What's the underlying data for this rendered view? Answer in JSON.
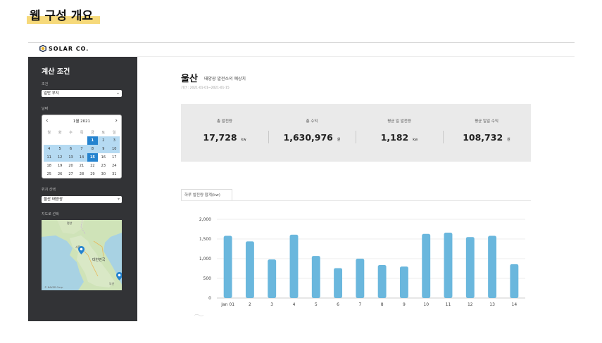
{
  "doc": {
    "title": "웹 구성 개요"
  },
  "brand": {
    "logo_text": "SOLAR CO."
  },
  "sidebar": {
    "title": "계산 조건",
    "condition_label": "조건",
    "condition_value": "일반 부지",
    "date_label": "날짜",
    "calendar": {
      "month_label": "1월 2021",
      "weekdays": [
        "월",
        "화",
        "수",
        "목",
        "금",
        "토",
        "일"
      ],
      "days": [
        "",
        "",
        "",
        "",
        "1",
        "2",
        "3",
        "4",
        "5",
        "6",
        "7",
        "8",
        "9",
        "10",
        "11",
        "12",
        "13",
        "14",
        "15",
        "16",
        "17",
        "18",
        "19",
        "20",
        "21",
        "22",
        "23",
        "24",
        "25",
        "26",
        "27",
        "28",
        "29",
        "30",
        "31"
      ],
      "range_start": "1",
      "range_end": "15"
    },
    "location_label": "위치 선택",
    "location_value": "울산 태양광",
    "map_label": "지도로 선택",
    "map_places": [
      "평양",
      "서울",
      "대한민국",
      "부산"
    ],
    "map_credit": "© NAVER Corp."
  },
  "main": {
    "title": "울산",
    "subtitle": "태양광 발전소의 예상치",
    "period": "기간 : 2021-01-01~2021-01-15"
  },
  "stats": [
    {
      "label": "총 발전량",
      "value": "17,728",
      "unit": "kw"
    },
    {
      "label": "총 수익",
      "value": "1,630,976",
      "unit": "원"
    },
    {
      "label": "평균 일 발전량",
      "value": "1,182",
      "unit": "kw"
    },
    {
      "label": "평균 일일 수익",
      "value": "108,732",
      "unit": "원"
    }
  ],
  "tab": {
    "label": "하루 발전량 합계(kw)"
  },
  "colors": {
    "bar": "#6ab7dd",
    "sidebar": "#323336",
    "calendar_selected": "#2583cf",
    "calendar_range": "#b5daf2",
    "highlight": "#f6d97a"
  },
  "chart_data": {
    "type": "bar",
    "categories": [
      "Jan 01",
      "2",
      "3",
      "4",
      "5",
      "6",
      "7",
      "8",
      "9",
      "10",
      "11",
      "12",
      "13",
      "14"
    ],
    "values": [
      1580,
      1440,
      980,
      1610,
      1070,
      760,
      1000,
      840,
      800,
      1630,
      1660,
      1550,
      1580,
      860
    ],
    "yticks": [
      "0",
      "500",
      "1,000",
      "1,500",
      "2,000"
    ],
    "ylim": [
      0,
      2000
    ],
    "grid": true
  }
}
